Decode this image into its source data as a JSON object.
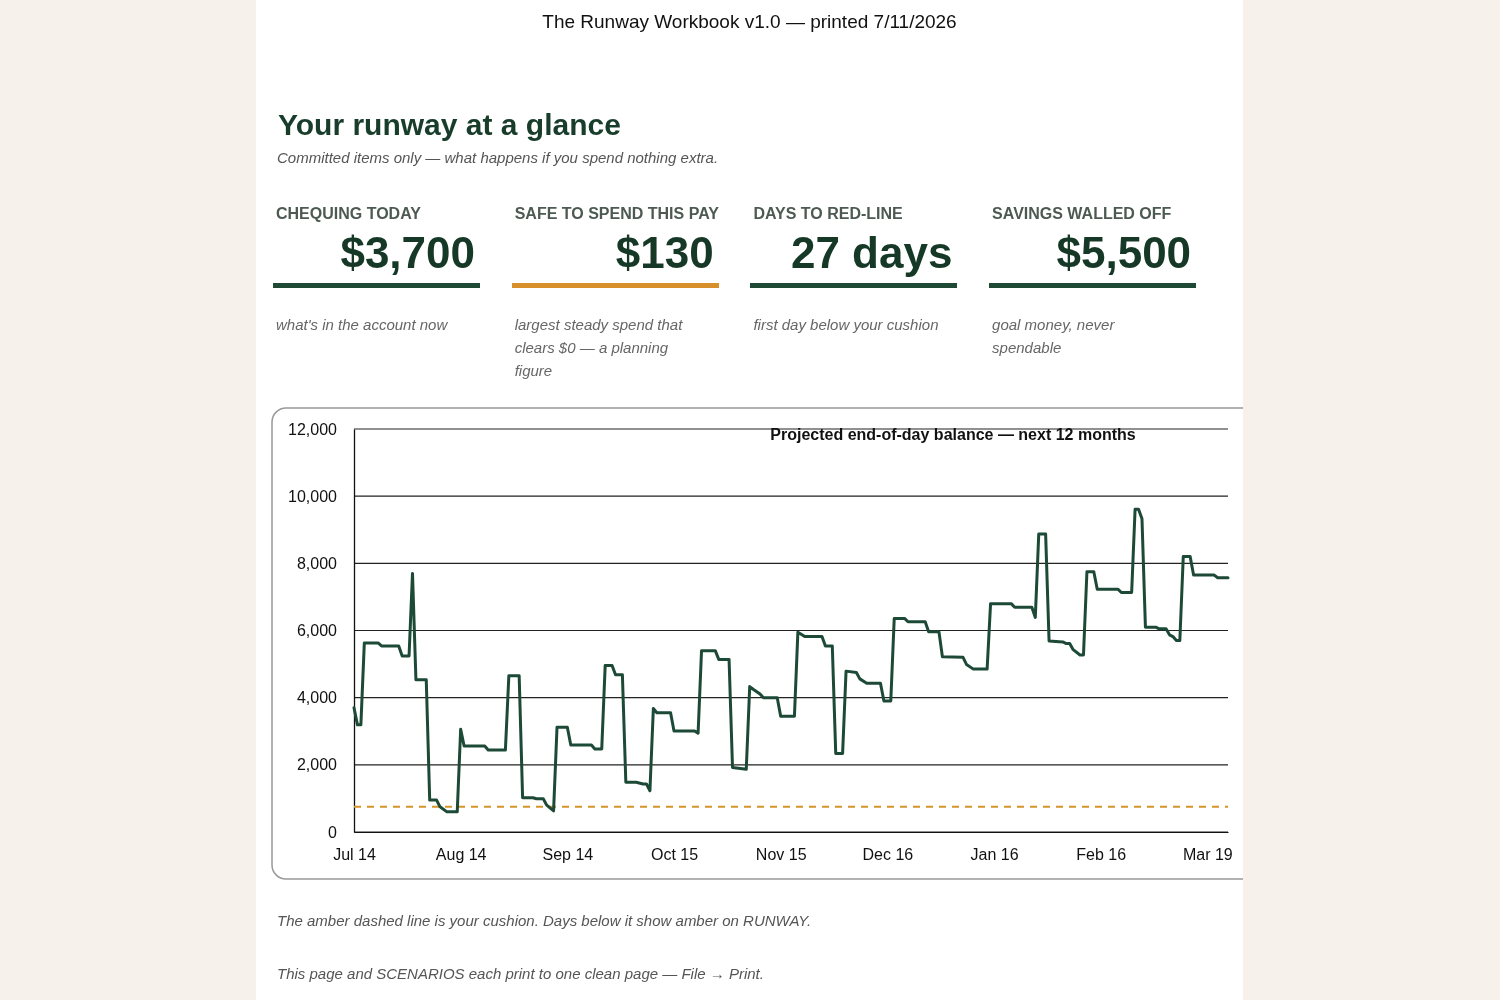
{
  "chart_data": [
    {
      "type": "other",
      "title": "Your runway at a glance",
      "subtitle": "Committed items only — what happens if you spend nothing extra.",
      "annotations": [
        "The Runway Workbook v1.0 — printed 7/11/2026",
        "CHEQUING TODAY",
        "$3,700",
        "what's in the account now",
        "SAFE TO SPEND THIS PAY",
        "$130",
        "largest steady spend that clears $0 — a planning figure",
        "DAYS TO RED-LINE",
        "27 days",
        "first day below your cushion",
        "SAVINGS WALLED OFF",
        "$5,500",
        "goal money, never spendable"
      ],
      "colors": [
        "#1e4a35",
        "#d68f2b",
        "#1e4a35",
        "#1e4a35"
      ]
    },
    {
      "type": "line",
      "title": "Projected end-of-day balance — next 12 months",
      "annotations": [
        "The amber dashed line is your cushion. Days below it show amber on RUNWAY.",
        "This page and SCENARIOS each print to one clean page — File → Print."
      ],
      "x": [
        "2026-07-14",
        "2026-07-15",
        "2026-07-16",
        "2026-07-17",
        "2026-07-21",
        "2026-07-22",
        "2026-07-27",
        "2026-07-28",
        "2026-07-30",
        "2026-07-31",
        "2026-08-01",
        "2026-08-04",
        "2026-08-05",
        "2026-08-07",
        "2026-08-08",
        "2026-08-10",
        "2026-08-13",
        "2026-08-14",
        "2026-08-15",
        "2026-08-21",
        "2026-08-22",
        "2026-08-27",
        "2026-08-28",
        "2026-08-31",
        "2026-09-01",
        "2026-09-04",
        "2026-09-05",
        "2026-09-07",
        "2026-09-08",
        "2026-09-10",
        "2026-09-11",
        "2026-09-14",
        "2026-09-15",
        "2026-09-21",
        "2026-09-22",
        "2026-09-24",
        "2026-09-25",
        "2026-09-27",
        "2026-09-28",
        "2026-09-30",
        "2026-10-01",
        "2026-10-04",
        "2026-10-06",
        "2026-10-07",
        "2026-10-08",
        "2026-10-09",
        "2026-10-10",
        "2026-10-14",
        "2026-10-15",
        "2026-10-21",
        "2026-10-22",
        "2026-10-23",
        "2026-10-27",
        "2026-10-28",
        "2026-10-31",
        "2026-11-01",
        "2026-11-05",
        "2026-11-06",
        "2026-11-07",
        "2026-11-09",
        "2026-11-10",
        "2026-11-14",
        "2026-11-15",
        "2026-11-19",
        "2026-11-20",
        "2026-11-22",
        "2026-11-27",
        "2026-11-28",
        "2026-11-30",
        "2026-12-01",
        "2026-12-03",
        "2026-12-04",
        "2026-12-07",
        "2026-12-08",
        "2026-12-10",
        "2026-12-14",
        "2026-12-15",
        "2026-12-17",
        "2026-12-18",
        "2026-12-21",
        "2026-12-22",
        "2026-12-27",
        "2026-12-28",
        "2026-12-31",
        "2027-01-01",
        "2027-01-07",
        "2027-01-08",
        "2027-01-10",
        "2027-01-14",
        "2027-01-15",
        "2027-01-21",
        "2027-01-22",
        "2027-01-27",
        "2027-01-28",
        "2027-01-29",
        "2027-01-31",
        "2027-02-01",
        "2027-02-05",
        "2027-02-06",
        "2027-02-07",
        "2027-02-08",
        "2027-02-10",
        "2027-02-11",
        "2027-02-12",
        "2027-02-14",
        "2027-02-15",
        "2027-02-21",
        "2027-02-22",
        "2027-02-25",
        "2027-02-26",
        "2027-02-27",
        "2027-02-28",
        "2027-03-01",
        "2027-03-04",
        "2027-03-05",
        "2027-03-07",
        "2027-03-08",
        "2027-03-09",
        "2027-03-10",
        "2027-03-11",
        "2027-03-12",
        "2027-03-14",
        "2027-03-15",
        "2027-03-21",
        "2027-03-22",
        "2027-03-25"
      ],
      "series": [
        {
          "color": "#1d4a37",
          "values": [
            3700,
            3190,
            3190,
            5630,
            5630,
            5540,
            5540,
            5240,
            5240,
            7700,
            4530,
            4530,
            950,
            950,
            750,
            600,
            600,
            3060,
            2560,
            2560,
            2440,
            2440,
            4650,
            4650,
            1020,
            1020,
            990,
            990,
            800,
            630,
            3120,
            3120,
            2590,
            2590,
            2470,
            2470,
            4960,
            4960,
            4680,
            4680,
            1480,
            1480,
            1430,
            1430,
            1230,
            3680,
            3550,
            3550,
            3010,
            3010,
            2940,
            5400,
            5400,
            5140,
            5140,
            1920,
            1870,
            4330,
            4250,
            4110,
            4000,
            4000,
            3450,
            3450,
            5950,
            5820,
            5820,
            5540,
            5540,
            2340,
            2340,
            4790,
            4750,
            4560,
            4430,
            4430,
            3900,
            3900,
            6360,
            6360,
            6260,
            6260,
            5960,
            5960,
            5220,
            5200,
            4990,
            4850,
            4850,
            6800,
            6800,
            6690,
            6690,
            6390,
            8870,
            8870,
            5690,
            5660,
            5610,
            5610,
            5430,
            5270,
            5270,
            7750,
            7750,
            7230,
            7230,
            7130,
            7130,
            9610,
            9610,
            9330,
            6100,
            6100,
            6050,
            6050,
            5870,
            5820,
            5700,
            5700,
            8200,
            8200,
            7650,
            7650,
            7570,
            7570
          ]
        }
      ],
      "xlim": [
        "2026-07-14",
        "2027-03-25"
      ],
      "xticks": [
        {
          "value": "2026-07-14",
          "label": "Jul 14"
        },
        {
          "value": "2026-08-14",
          "label": "Aug 14"
        },
        {
          "value": "2026-09-14",
          "label": "Sep 14"
        },
        {
          "value": "2026-10-15",
          "label": "Oct 15"
        },
        {
          "value": "2026-11-15",
          "label": "Nov 15"
        },
        {
          "value": "2026-12-16",
          "label": "Dec 16"
        },
        {
          "value": "2027-01-16",
          "label": "Jan 16"
        },
        {
          "value": "2027-02-16",
          "label": "Feb 16"
        },
        {
          "value": "2027-03-19",
          "label": "Mar 19"
        }
      ],
      "ylim": [
        0,
        12000
      ],
      "yticks": [
        0,
        {
          "value": 2000,
          "label": "2,000"
        },
        {
          "value": 4000,
          "label": "4,000"
        },
        {
          "value": 6000,
          "label": "6,000"
        },
        {
          "value": 8000,
          "label": "8,000"
        },
        {
          "value": 10000,
          "label": "10,000"
        },
        {
          "value": 12000,
          "label": "12,000"
        }
      ],
      "grid": "y",
      "line_style": "solid",
      "marker": "none",
      "ref_lines": [
        {
          "axis": "y",
          "value": 750,
          "color": "#d4952a",
          "line_style": "dashed"
        }
      ]
    }
  ]
}
